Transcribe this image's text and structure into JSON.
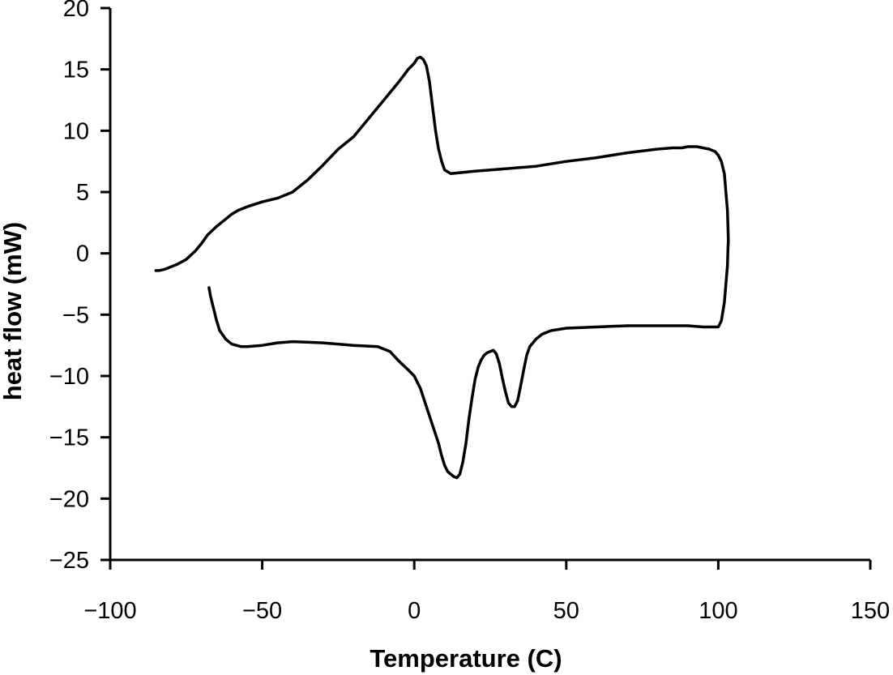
{
  "chart_data": {
    "type": "line",
    "title": "",
    "xlabel": "Temperature (C)",
    "ylabel": "heat flow (mW)",
    "xlim": [
      -100,
      150
    ],
    "ylim": [
      -25,
      20
    ],
    "xticks": [
      -100,
      -50,
      0,
      50,
      100,
      150
    ],
    "yticks": [
      20,
      15,
      10,
      5,
      0,
      -5,
      -10,
      -15,
      -20,
      -25
    ],
    "xtick_labels": [
      "−100",
      "−50",
      "0",
      "50",
      "100",
      "150"
    ],
    "ytick_labels": [
      "20",
      "15",
      "10",
      "5",
      "0",
      "−5",
      "−10",
      "−15",
      "−20",
      "−25"
    ],
    "grid": false,
    "legend": "none",
    "series": [
      {
        "x": [
          -67.5,
          -67,
          -66,
          -65,
          -64,
          -62,
          -60,
          -57,
          -55,
          -50,
          -45,
          -40,
          -30,
          -20,
          -12,
          -8,
          -5,
          -2,
          0,
          2,
          4,
          6,
          8,
          9,
          10,
          11,
          12,
          13,
          14,
          15,
          16,
          17,
          18,
          19,
          20,
          21,
          22,
          23,
          24,
          25,
          26,
          27,
          28,
          29,
          30,
          31,
          32,
          33,
          34,
          35,
          36,
          37,
          38,
          40,
          42,
          45,
          50,
          60,
          70,
          80,
          90,
          95,
          98,
          100,
          101,
          102,
          102.5,
          103,
          103.2,
          103.3,
          103.2,
          103,
          102.5,
          102,
          101,
          100,
          99,
          97,
          95,
          93,
          91,
          90,
          88,
          85,
          80,
          70,
          60,
          50,
          40,
          30,
          20,
          12,
          10,
          9,
          8,
          7,
          6,
          5,
          4,
          3,
          2,
          1,
          0,
          -2,
          -5,
          -10,
          -15,
          -20,
          -25,
          -30,
          -35,
          -40,
          -45,
          -50,
          -55,
          -58,
          -60,
          -62,
          -65,
          -68,
          -70,
          -72,
          -75,
          -78,
          -80,
          -82,
          -84,
          -85
        ],
        "y": [
          -2.8,
          -3.5,
          -4.5,
          -5.5,
          -6.3,
          -7.0,
          -7.4,
          -7.6,
          -7.6,
          -7.5,
          -7.3,
          -7.2,
          -7.3,
          -7.5,
          -7.6,
          -8.0,
          -8.8,
          -9.5,
          -10.0,
          -11.0,
          -12.5,
          -14.0,
          -15.5,
          -16.5,
          -17.3,
          -17.8,
          -18.0,
          -18.2,
          -18.3,
          -18.0,
          -17.0,
          -15.5,
          -13.5,
          -11.8,
          -10.3,
          -9.3,
          -8.7,
          -8.3,
          -8.1,
          -8.0,
          -7.9,
          -8.2,
          -9.0,
          -10.2,
          -11.3,
          -12.2,
          -12.5,
          -12.5,
          -12.0,
          -10.8,
          -9.5,
          -8.3,
          -7.6,
          -7.0,
          -6.6,
          -6.3,
          -6.1,
          -6.0,
          -5.9,
          -5.9,
          -5.9,
          -6.0,
          -6.0,
          -6.0,
          -5.5,
          -4.0,
          -2.5,
          -1.0,
          0.5,
          1.0,
          2.0,
          3.5,
          5.0,
          6.5,
          7.5,
          8.0,
          8.3,
          8.5,
          8.6,
          8.7,
          8.7,
          8.7,
          8.6,
          8.6,
          8.5,
          8.2,
          7.8,
          7.5,
          7.1,
          6.9,
          6.7,
          6.5,
          6.8,
          7.5,
          8.5,
          10.0,
          12.0,
          14.0,
          15.3,
          15.8,
          16.0,
          15.9,
          15.5,
          15.0,
          14.0,
          12.5,
          11.0,
          9.5,
          8.5,
          7.2,
          6.0,
          5.0,
          4.5,
          4.2,
          3.8,
          3.5,
          3.2,
          2.8,
          2.2,
          1.5,
          0.8,
          0.2,
          -0.5,
          -0.9,
          -1.1,
          -1.3,
          -1.4,
          -1.4
        ]
      }
    ]
  }
}
